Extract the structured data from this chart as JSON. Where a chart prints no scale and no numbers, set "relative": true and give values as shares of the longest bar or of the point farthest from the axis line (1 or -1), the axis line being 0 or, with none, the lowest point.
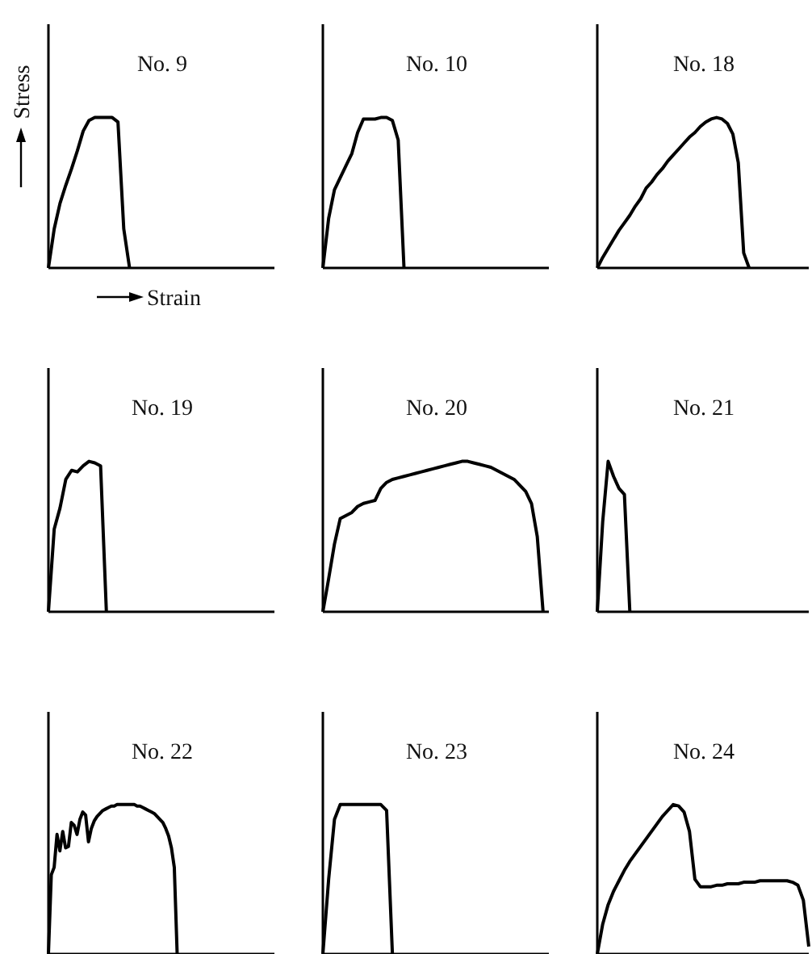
{
  "chart_data": [
    {
      "type": "line",
      "title": "No. 9",
      "xlabel": "Strain",
      "ylabel": "Stress",
      "relative": true,
      "categories": [
        null,
        null,
        null,
        null,
        null,
        null,
        null,
        null,
        null,
        null,
        null,
        null,
        null,
        null,
        null,
        null,
        null,
        null,
        null,
        null,
        null,
        null,
        null,
        null,
        null,
        null,
        null,
        null,
        null,
        null,
        null,
        null,
        null,
        null,
        null,
        null,
        null,
        null,
        null,
        null
      ],
      "series": [
        {
          "color": "#000000",
          "values": [
            0,
            0.26,
            0.43,
            0.55,
            0.66,
            0.78,
            0.91,
            0.98,
            1,
            1,
            1,
            1,
            0.97,
            0.26,
            0,
            null,
            null,
            null,
            null,
            null,
            null,
            null,
            null,
            null,
            null,
            null,
            null,
            null,
            null,
            null,
            null,
            null,
            null,
            null,
            null,
            null,
            null,
            null,
            null,
            null
          ]
        }
      ]
    },
    {
      "type": "line",
      "title": "No. 10",
      "relative": true,
      "categories": [
        null,
        null,
        null,
        null,
        null,
        null,
        null,
        null,
        null,
        null,
        null,
        null,
        null,
        null,
        null,
        null,
        null,
        null,
        null,
        null,
        null,
        null,
        null,
        null,
        null,
        null,
        null,
        null,
        null,
        null,
        null,
        null,
        null,
        null,
        null,
        null,
        null,
        null,
        null,
        null
      ],
      "series": [
        {
          "color": "#000000",
          "values": [
            0,
            0.33,
            0.52,
            0.6,
            0.68,
            0.76,
            0.9,
            0.99,
            0.99,
            0.99,
            1,
            1,
            0.98,
            0.85,
            0,
            null,
            null,
            null,
            null,
            null,
            null,
            null,
            null,
            null,
            null,
            null,
            null,
            null,
            null,
            null,
            null,
            null,
            null,
            null,
            null,
            null,
            null,
            null,
            null,
            null
          ]
        }
      ]
    },
    {
      "type": "line",
      "title": "No. 18",
      "relative": true,
      "categories": [
        null,
        null,
        null,
        null,
        null,
        null,
        null,
        null,
        null,
        null,
        null,
        null,
        null,
        null,
        null,
        null,
        null,
        null,
        null,
        null,
        null,
        null,
        null,
        null,
        null,
        null,
        null,
        null,
        null,
        null,
        null,
        null,
        null,
        null,
        null,
        null,
        null,
        null,
        null,
        null
      ],
      "series": [
        {
          "color": "#000000",
          "values": [
            0,
            0.07,
            0.13,
            0.19,
            0.25,
            0.3,
            0.35,
            0.41,
            0.46,
            0.53,
            0.57,
            0.62,
            0.66,
            0.71,
            0.75,
            0.79,
            0.83,
            0.87,
            0.9,
            0.94,
            0.97,
            0.99,
            1,
            0.99,
            0.96,
            0.89,
            0.7,
            0.1,
            0,
            null,
            null,
            null,
            null,
            null,
            null,
            null,
            null,
            null,
            null,
            null
          ]
        }
      ]
    },
    {
      "type": "line",
      "title": "No. 19",
      "relative": true,
      "categories": [
        null,
        null,
        null,
        null,
        null,
        null,
        null,
        null,
        null,
        null,
        null,
        null,
        null,
        null,
        null,
        null,
        null,
        null,
        null,
        null,
        null,
        null,
        null,
        null,
        null,
        null,
        null,
        null,
        null,
        null,
        null,
        null,
        null,
        null,
        null,
        null,
        null,
        null,
        null,
        null
      ],
      "series": [
        {
          "color": "#000000",
          "values": [
            0,
            0.55,
            0.69,
            0.88,
            0.94,
            0.93,
            0.97,
            1,
            0.99,
            0.97,
            0,
            null,
            null,
            null,
            null,
            null,
            null,
            null,
            null,
            null,
            null,
            null,
            null,
            null,
            null,
            null,
            null,
            null,
            null,
            null,
            null,
            null,
            null,
            null,
            null,
            null,
            null,
            null,
            null,
            null
          ]
        }
      ]
    },
    {
      "type": "line",
      "title": "No. 20",
      "relative": true,
      "categories": [
        null,
        null,
        null,
        null,
        null,
        null,
        null,
        null,
        null,
        null,
        null,
        null,
        null,
        null,
        null,
        null,
        null,
        null,
        null,
        null,
        null,
        null,
        null,
        null,
        null,
        null,
        null,
        null,
        null,
        null,
        null,
        null,
        null,
        null,
        null,
        null,
        null,
        null,
        null,
        null
      ],
      "series": [
        {
          "color": "#000000",
          "values": [
            0,
            0.22,
            0.45,
            0.62,
            0.64,
            0.66,
            0.7,
            0.72,
            0.73,
            0.74,
            0.82,
            0.86,
            0.88,
            0.89,
            0.9,
            0.91,
            0.92,
            0.93,
            0.94,
            0.95,
            0.96,
            0.97,
            0.98,
            0.99,
            1,
            1,
            0.99,
            0.98,
            0.97,
            0.96,
            0.94,
            0.92,
            0.9,
            0.88,
            0.84,
            0.8,
            0.72,
            0.5,
            0,
            null
          ]
        }
      ]
    },
    {
      "type": "line",
      "title": "No. 21",
      "relative": true,
      "categories": [
        null,
        null,
        null,
        null,
        null,
        null,
        null,
        null,
        null,
        null,
        null,
        null,
        null,
        null,
        null,
        null,
        null,
        null,
        null,
        null,
        null,
        null,
        null,
        null,
        null,
        null,
        null,
        null,
        null,
        null,
        null,
        null,
        null,
        null,
        null,
        null,
        null,
        null,
        null,
        null
      ],
      "series": [
        {
          "color": "#000000",
          "values": [
            0,
            0.6,
            1,
            0.9,
            0.82,
            0.78,
            0,
            null,
            null,
            null,
            null,
            null,
            null,
            null,
            null,
            null,
            null,
            null,
            null,
            null,
            null,
            null,
            null,
            null,
            null,
            null,
            null,
            null,
            null,
            null,
            null,
            null,
            null,
            null,
            null,
            null,
            null,
            null,
            null,
            null
          ]
        }
      ]
    },
    {
      "type": "line",
      "title": "No. 22",
      "relative": true,
      "categories": [
        null,
        null,
        null,
        null,
        null,
        null,
        null,
        null,
        null,
        null,
        null,
        null,
        null,
        null,
        null,
        null,
        null,
        null,
        null,
        null,
        null,
        null,
        null,
        null,
        null,
        null,
        null,
        null,
        null,
        null,
        null,
        null,
        null,
        null,
        null,
        null,
        null,
        null,
        null,
        null,
        null,
        null,
        null,
        null,
        null,
        null,
        null,
        null,
        null,
        null,
        null,
        null,
        null,
        null,
        null,
        null,
        null,
        null,
        null,
        null,
        null,
        null,
        null,
        null,
        null,
        null,
        null,
        null,
        null,
        null,
        null,
        null,
        null,
        null,
        null,
        null,
        null,
        null,
        null,
        null
      ],
      "series": [
        {
          "color": "#000000",
          "values": [
            0,
            0.53,
            0.58,
            0.8,
            0.69,
            0.82,
            0.71,
            0.72,
            0.88,
            0.86,
            0.8,
            0.9,
            0.95,
            0.93,
            0.75,
            0.84,
            0.89,
            0.92,
            0.94,
            0.96,
            0.97,
            0.98,
            0.99,
            0.99,
            1,
            1,
            1,
            1,
            1,
            1,
            1,
            0.99,
            0.99,
            0.98,
            0.97,
            0.96,
            0.95,
            0.94,
            0.92,
            0.9,
            0.88,
            0.84,
            0.79,
            0.71,
            0.58,
            0,
            null,
            null,
            null,
            null,
            null,
            null,
            null,
            null,
            null,
            null,
            null,
            null,
            null,
            null,
            null,
            null,
            null,
            null,
            null,
            null,
            null,
            null,
            null,
            null,
            null,
            null,
            null,
            null,
            null,
            null,
            null,
            null,
            null,
            null
          ]
        }
      ]
    },
    {
      "type": "line",
      "title": "No. 23",
      "relative": true,
      "categories": [
        null,
        null,
        null,
        null,
        null,
        null,
        null,
        null,
        null,
        null,
        null,
        null,
        null,
        null,
        null,
        null,
        null,
        null,
        null,
        null,
        null,
        null,
        null,
        null,
        null,
        null,
        null,
        null,
        null,
        null,
        null,
        null,
        null,
        null,
        null,
        null,
        null,
        null,
        null,
        null
      ],
      "series": [
        {
          "color": "#000000",
          "values": [
            0,
            0.5,
            0.9,
            1,
            1,
            1,
            1,
            1,
            1,
            1,
            1,
            0.96,
            0,
            null,
            null,
            null,
            null,
            null,
            null,
            null,
            null,
            null,
            null,
            null,
            null,
            null,
            null,
            null,
            null,
            null,
            null,
            null,
            null,
            null,
            null,
            null,
            null,
            null,
            null,
            null
          ]
        }
      ]
    },
    {
      "type": "line",
      "title": "No. 24",
      "relative": true,
      "categories": [
        null,
        null,
        null,
        null,
        null,
        null,
        null,
        null,
        null,
        null,
        null,
        null,
        null,
        null,
        null,
        null,
        null,
        null,
        null,
        null,
        null,
        null,
        null,
        null,
        null,
        null,
        null,
        null,
        null,
        null,
        null,
        null,
        null,
        null,
        null,
        null,
        null,
        null,
        null,
        null
      ],
      "series": [
        {
          "color": "#000000",
          "values": [
            0,
            0.2,
            0.33,
            0.42,
            0.49,
            0.56,
            0.62,
            0.67,
            0.72,
            0.77,
            0.82,
            0.87,
            0.92,
            0.96,
            1,
            0.99,
            0.95,
            0.82,
            0.5,
            0.45,
            0.45,
            0.45,
            0.46,
            0.46,
            0.47,
            0.47,
            0.47,
            0.48,
            0.48,
            0.48,
            0.49,
            0.49,
            0.49,
            0.49,
            0.49,
            0.49,
            0.48,
            0.46,
            0.36,
            0.05
          ]
        }
      ]
    }
  ]
}
